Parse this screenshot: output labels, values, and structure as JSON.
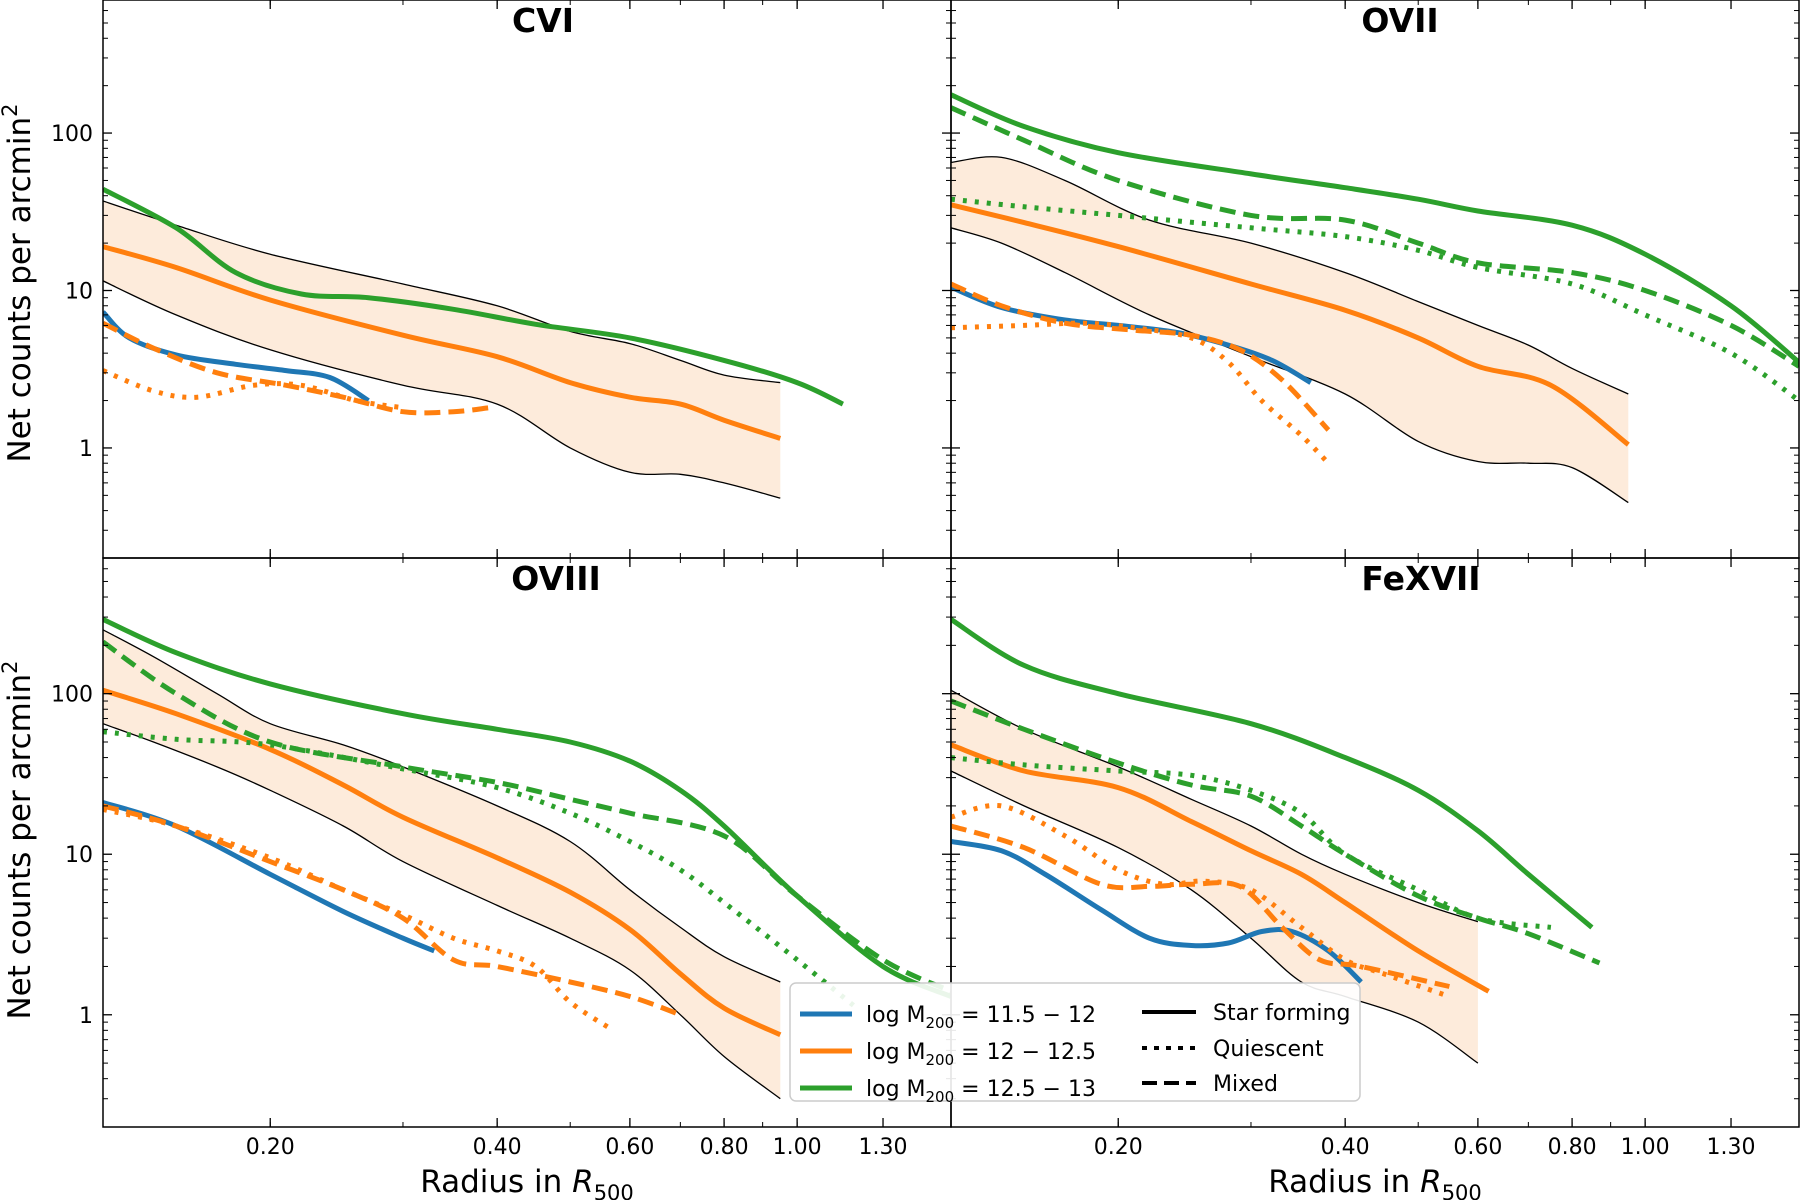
{
  "chart_data": {
    "type": "line",
    "x_scale": "log",
    "y_scale": "log",
    "xlim": [
      0.12,
      1.6
    ],
    "ylim": [
      0.2,
      700
    ],
    "xlabel": "Radius in ",
    "xlabel_math": "R",
    "xlabel_sub": "500",
    "ylabel": "Net counts per arcmin",
    "ylabel_sup": "2",
    "x_ticks": [
      {
        "value": 0.2,
        "label": "0.20"
      },
      {
        "value": 0.4,
        "label": "0.40"
      },
      {
        "value": 0.6,
        "label": "0.60"
      },
      {
        "value": 0.8,
        "label": "0.80"
      },
      {
        "value": 1.0,
        "label": "1.00"
      },
      {
        "value": 1.3,
        "label": "1.30"
      }
    ],
    "y_ticks": [
      {
        "value": 1,
        "label": "1"
      },
      {
        "value": 10,
        "label": "10"
      },
      {
        "value": 100,
        "label": "100"
      }
    ],
    "colors": {
      "low": "#1f77b4",
      "mid": "#ff7f0e",
      "high": "#2ca02c",
      "band_fill": "#fdebdb",
      "band_edge": "#000000"
    },
    "legend": {
      "mass_bins": [
        {
          "key": "low",
          "label": "log M",
          "sub": "200",
          "range": " = 11.5 − 12"
        },
        {
          "key": "mid",
          "label": "log M",
          "sub": "200",
          "range": " = 12 − 12.5"
        },
        {
          "key": "high",
          "label": "log M",
          "sub": "200",
          "range": " = 12.5 − 13"
        }
      ],
      "styles": [
        {
          "key": "solid",
          "label": "Star forming"
        },
        {
          "key": "dotted",
          "label": "Quiescent"
        },
        {
          "key": "dashed",
          "label": "Mixed"
        }
      ]
    },
    "panels": [
      {
        "id": "cvi",
        "title": "CVI",
        "band": {
          "x": [
            0.12,
            0.15,
            0.2,
            0.3,
            0.4,
            0.5,
            0.6,
            0.7,
            0.8,
            0.95
          ],
          "upper": [
            37,
            26,
            17,
            11,
            8,
            5.5,
            4.6,
            3.6,
            2.9,
            2.6
          ],
          "lower": [
            11.5,
            7,
            4.2,
            2.5,
            1.9,
            1.0,
            0.7,
            0.68,
            0.6,
            0.48
          ]
        },
        "series": [
          {
            "mass": "low",
            "style": "solid",
            "x": [
              0.12,
              0.13,
              0.15,
              0.18,
              0.21,
              0.24,
              0.27
            ],
            "y": [
              7.3,
              5,
              3.9,
              3.4,
              3.1,
              2.8,
              2.0
            ]
          },
          {
            "mass": "mid",
            "style": "solid",
            "x": [
              0.12,
              0.15,
              0.2,
              0.3,
              0.4,
              0.5,
              0.6,
              0.7,
              0.8,
              0.95
            ],
            "y": [
              19,
              14,
              8.7,
              5.2,
              3.8,
              2.6,
              2.1,
              1.9,
              1.5,
              1.15
            ]
          },
          {
            "mass": "mid",
            "style": "dotted",
            "x": [
              0.12,
              0.14,
              0.16,
              0.19,
              0.22,
              0.26,
              0.3
            ],
            "y": [
              3.1,
              2.3,
              2.1,
              2.5,
              2.5,
              2.0,
              1.8
            ]
          },
          {
            "mass": "mid",
            "style": "dashed",
            "x": [
              0.12,
              0.14,
              0.17,
              0.21,
              0.25,
              0.3,
              0.35,
              0.39
            ],
            "y": [
              6.2,
              4.3,
              3.0,
              2.5,
              2.1,
              1.7,
              1.7,
              1.8
            ]
          },
          {
            "mass": "high",
            "style": "solid",
            "x": [
              0.12,
              0.15,
              0.18,
              0.22,
              0.27,
              0.35,
              0.45,
              0.6,
              0.8,
              1.0,
              1.15
            ],
            "y": [
              44,
              25,
              13,
              9.5,
              9,
              7.6,
              6.1,
              5.0,
              3.6,
              2.6,
              1.9
            ]
          }
        ]
      },
      {
        "id": "ovii",
        "title": "OVII",
        "band": {
          "x": [
            0.12,
            0.14,
            0.17,
            0.22,
            0.3,
            0.4,
            0.5,
            0.6,
            0.7,
            0.8,
            0.95
          ],
          "upper": [
            65,
            70,
            50,
            28,
            20,
            13,
            8.5,
            6,
            4.5,
            3.2,
            2.2
          ],
          "lower": [
            25,
            20,
            13,
            7,
            3.8,
            2.2,
            1.1,
            0.82,
            0.8,
            0.75,
            0.45
          ]
        },
        "series": [
          {
            "mass": "low",
            "style": "solid",
            "x": [
              0.12,
              0.14,
              0.17,
              0.2,
              0.24,
              0.28,
              0.32,
              0.36
            ],
            "y": [
              10.5,
              7.8,
              6.5,
              6.0,
              5.4,
              4.5,
              3.6,
              2.6
            ]
          },
          {
            "mass": "mid",
            "style": "solid",
            "x": [
              0.12,
              0.15,
              0.2,
              0.3,
              0.4,
              0.5,
              0.6,
              0.75,
              0.95
            ],
            "y": [
              35,
              27,
              19,
              11,
              7.5,
              5,
              3.3,
              2.5,
              1.05
            ]
          },
          {
            "mass": "mid",
            "style": "dotted",
            "x": [
              0.12,
              0.15,
              0.18,
              0.21,
              0.25,
              0.28,
              0.31,
              0.35,
              0.38
            ],
            "y": [
              5.8,
              6.0,
              6.2,
              5.8,
              5.0,
              3.5,
              2.0,
              1.2,
              0.8
            ]
          },
          {
            "mass": "mid",
            "style": "dashed",
            "x": [
              0.12,
              0.14,
              0.17,
              0.21,
              0.25,
              0.29,
              0.33,
              0.38
            ],
            "y": [
              11,
              8,
              6.2,
              5.6,
              5.2,
              4.2,
              2.7,
              1.3
            ]
          },
          {
            "mass": "high",
            "style": "solid",
            "x": [
              0.12,
              0.15,
              0.2,
              0.3,
              0.4,
              0.5,
              0.6,
              0.8,
              1.0,
              1.3,
              1.6
            ],
            "y": [
              175,
              110,
              75,
              55,
              45,
              38,
              32,
              26,
              17,
              8,
              3.5
            ]
          },
          {
            "mass": "high",
            "style": "dashed",
            "x": [
              0.12,
              0.15,
              0.2,
              0.3,
              0.4,
              0.5,
              0.6,
              0.8,
              1.0,
              1.3,
              1.6
            ],
            "y": [
              145,
              90,
              50,
              30,
              28,
              20,
              15,
              13,
              10,
              6,
              3.3
            ]
          },
          {
            "mass": "high",
            "style": "dotted",
            "x": [
              0.12,
              0.15,
              0.2,
              0.3,
              0.4,
              0.5,
              0.6,
              0.8,
              1.0,
              1.3,
              1.6
            ],
            "y": [
              38,
              34,
              30,
              25,
              22,
              18,
              14,
              11,
              7,
              4,
              2.0
            ]
          }
        ]
      },
      {
        "id": "oviii",
        "title": "OVIII",
        "band": {
          "x": [
            0.12,
            0.14,
            0.17,
            0.2,
            0.25,
            0.3,
            0.4,
            0.5,
            0.6,
            0.7,
            0.8,
            0.95
          ],
          "upper": [
            250,
            170,
            100,
            65,
            48,
            35,
            20,
            12,
            6,
            3.5,
            2.3,
            1.6
          ],
          "lower": [
            65,
            50,
            35,
            25,
            15,
            9,
            4.8,
            3.0,
            1.9,
            1.0,
            0.55,
            0.3
          ]
        },
        "series": [
          {
            "mass": "low",
            "style": "solid",
            "x": [
              0.12,
              0.15,
              0.2,
              0.25,
              0.3,
              0.33
            ],
            "y": [
              21,
              15,
              7.5,
              4.4,
              3.0,
              2.5
            ]
          },
          {
            "mass": "mid",
            "style": "solid",
            "x": [
              0.12,
              0.15,
              0.2,
              0.25,
              0.3,
              0.4,
              0.5,
              0.6,
              0.7,
              0.8,
              0.95
            ],
            "y": [
              105,
              75,
              45,
              27,
              17,
              9.5,
              5.8,
              3.4,
              1.8,
              1.1,
              0.75
            ]
          },
          {
            "mass": "mid",
            "style": "dotted",
            "x": [
              0.12,
              0.15,
              0.2,
              0.25,
              0.3,
              0.35,
              0.4,
              0.45,
              0.5,
              0.57
            ],
            "y": [
              19,
              15,
              9.5,
              6.0,
              4.2,
              3.0,
              2.5,
              2.0,
              1.2,
              0.8
            ]
          },
          {
            "mass": "mid",
            "style": "dashed",
            "x": [
              0.12,
              0.15,
              0.2,
              0.25,
              0.3,
              0.35,
              0.4,
              0.5,
              0.6,
              0.7
            ],
            "y": [
              20,
              15,
              9,
              6,
              4,
              2.2,
              2.0,
              1.6,
              1.3,
              1.0
            ]
          },
          {
            "mass": "high",
            "style": "solid",
            "x": [
              0.12,
              0.15,
              0.2,
              0.3,
              0.4,
              0.5,
              0.6,
              0.7,
              0.8,
              1.0,
              1.3,
              1.6
            ],
            "y": [
              290,
              180,
              115,
              75,
              60,
              50,
              38,
              25,
              15,
              5.5,
              2.0,
              1.3
            ]
          },
          {
            "mass": "high",
            "style": "dashed",
            "x": [
              0.12,
              0.15,
              0.2,
              0.3,
              0.4,
              0.5,
              0.6,
              0.8,
              1.0,
              1.3,
              1.6
            ],
            "y": [
              210,
              100,
              50,
              35,
              28,
              22,
              18,
              13,
              5.5,
              2.2,
              1.4
            ]
          },
          {
            "mass": "high",
            "style": "dotted",
            "x": [
              0.12,
              0.15,
              0.2,
              0.3,
              0.4,
              0.5,
              0.6,
              0.7,
              0.8,
              1.0,
              1.2
            ],
            "y": [
              58,
              52,
              48,
              34,
              26,
              18,
              12,
              8,
              5,
              2.2,
              1.1
            ]
          }
        ]
      },
      {
        "id": "fexvii",
        "title": "FeXVII",
        "band": {
          "x": [
            0.12,
            0.15,
            0.2,
            0.25,
            0.3,
            0.35,
            0.4,
            0.5,
            0.6
          ],
          "upper": [
            105,
            60,
            35,
            22,
            15,
            10,
            7.5,
            5,
            3.8
          ],
          "lower": [
            33,
            20,
            11,
            6,
            3,
            1.6,
            1.3,
            0.9,
            0.5
          ]
        },
        "series": [
          {
            "mass": "low",
            "style": "solid",
            "x": [
              0.12,
              0.14,
              0.16,
              0.19,
              0.22,
              0.25,
              0.28,
              0.31,
              0.34,
              0.38,
              0.42
            ],
            "y": [
              12,
              10.5,
              7.5,
              4.5,
              3.0,
              2.7,
              2.8,
              3.3,
              3.3,
              2.5,
              1.6
            ]
          },
          {
            "mass": "mid",
            "style": "solid",
            "x": [
              0.12,
              0.15,
              0.2,
              0.25,
              0.3,
              0.35,
              0.4,
              0.5,
              0.62
            ],
            "y": [
              48,
              33,
              26,
              16,
              10.5,
              7.5,
              5,
              2.5,
              1.4
            ]
          },
          {
            "mass": "mid",
            "style": "dotted",
            "x": [
              0.12,
              0.14,
              0.17,
              0.2,
              0.23,
              0.26,
              0.3,
              0.35,
              0.4,
              0.45,
              0.55
            ],
            "y": [
              17,
              20,
              13,
              8,
              6.5,
              6.8,
              6.0,
              3.5,
              2.2,
              1.8,
              1.3
            ]
          },
          {
            "mass": "mid",
            "style": "dashed",
            "x": [
              0.12,
              0.15,
              0.19,
              0.22,
              0.25,
              0.29,
              0.33,
              0.37,
              0.42,
              0.55
            ],
            "y": [
              15,
              11,
              6.5,
              6.3,
              6.5,
              6.3,
              3.5,
              2.2,
              2.0,
              1.5
            ]
          },
          {
            "mass": "high",
            "style": "solid",
            "x": [
              0.12,
              0.15,
              0.2,
              0.3,
              0.4,
              0.5,
              0.6,
              0.7,
              0.85
            ],
            "y": [
              290,
              150,
              100,
              65,
              40,
              25,
              14,
              7.5,
              3.5
            ]
          },
          {
            "mass": "high",
            "style": "dashed",
            "x": [
              0.12,
              0.15,
              0.2,
              0.25,
              0.3,
              0.35,
              0.4,
              0.5,
              0.6,
              0.7,
              0.87
            ],
            "y": [
              90,
              60,
              37,
              27,
              23,
              15,
              10,
              5.5,
              4.0,
              3.2,
              2.1
            ]
          },
          {
            "mass": "high",
            "style": "dotted",
            "x": [
              0.12,
              0.15,
              0.2,
              0.25,
              0.3,
              0.35,
              0.4,
              0.5,
              0.6,
              0.75
            ],
            "y": [
              40,
              36,
              33,
              31,
              25,
              18,
              10,
              6,
              4,
              3.5
            ]
          }
        ]
      }
    ]
  }
}
